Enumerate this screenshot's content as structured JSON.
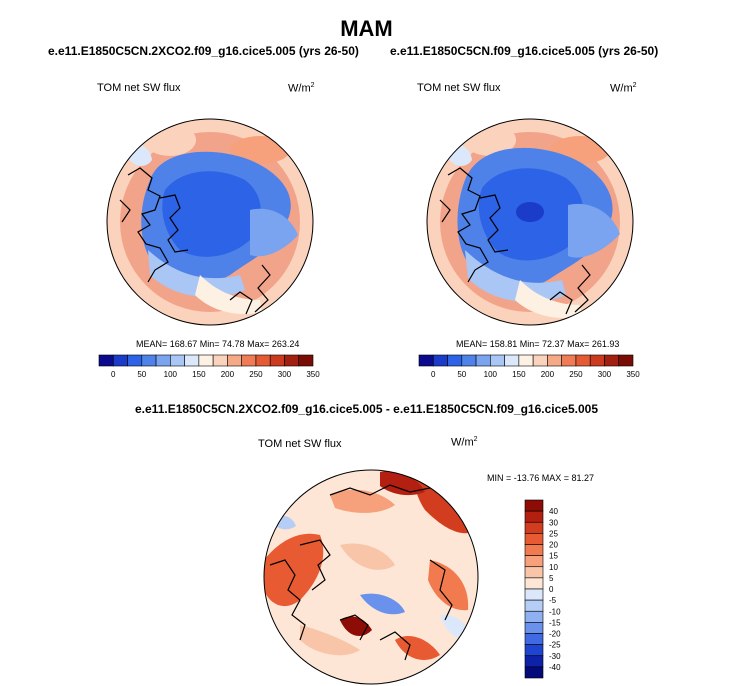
{
  "figure": {
    "season": "MAM",
    "colors": {
      "ocean_warm": "#f2a48a",
      "ice_blue": "#4f82e8",
      "coast": "#000000"
    }
  },
  "panels": [
    {
      "id": "panel-test",
      "title": "e.e11.E1850C5CN.2XCO2.f09_g16.cice5.005 (yrs 26-50)",
      "variable": "TOM net SW flux",
      "units_base": "W/m",
      "units_exp": "2",
      "stats_text": "MEAN= 168.67  Min=  74.78  Max= 263.24"
    },
    {
      "id": "panel-control",
      "title": "e.e11.E1850C5CN.f09_g16.cice5.005 (yrs 26-50)",
      "variable": "TOM net SW flux",
      "units_base": "W/m",
      "units_exp": "2",
      "stats_text": "MEAN= 158.81  Min=  72.37  Max= 261.93"
    }
  ],
  "diff_panel": {
    "title": "e.e11.E1850C5CN.2XCO2.f09_g16.cice5.005 - e.e11.E1850C5CN.f09_g16.cice5.005",
    "variable": "TOM net SW flux",
    "units_base": "W/m",
    "units_exp": "2",
    "stats_text": "MIN = -13.76 MAX =  81.27"
  },
  "chart_data": [
    {
      "type": "heatmap",
      "title": "e.e11.E1850C5CN.2XCO2.f09_g16.cice5.005 (yrs 26-50)",
      "projection": "north polar stereographic",
      "variable": "TOM net SW flux",
      "units": "W/m2",
      "mean": 168.67,
      "min": 74.78,
      "max": 263.24,
      "colorbar": {
        "orientation": "horizontal",
        "labels": [
          "0",
          "50",
          "100",
          "150",
          "200",
          "250",
          "300",
          "350"
        ],
        "colors": [
          "#0b0b8e",
          "#1a3cc8",
          "#2d63e6",
          "#4f82e8",
          "#7aa3f0",
          "#a9c6f5",
          "#dbe8fb",
          "#fdf1e4",
          "#fbd3bd",
          "#f5a986",
          "#ef7c57",
          "#e35a33",
          "#c93a1e",
          "#a12010",
          "#7a0c06"
        ]
      }
    },
    {
      "type": "heatmap",
      "title": "e.e11.E1850C5CN.f09_g16.cice5.005 (yrs 26-50)",
      "projection": "north polar stereographic",
      "variable": "TOM net SW flux",
      "units": "W/m2",
      "mean": 158.81,
      "min": 72.37,
      "max": 261.93,
      "colorbar": {
        "orientation": "horizontal",
        "labels": [
          "0",
          "50",
          "100",
          "150",
          "200",
          "250",
          "300",
          "350"
        ],
        "colors": [
          "#0b0b8e",
          "#1a3cc8",
          "#2d63e6",
          "#4f82e8",
          "#7aa3f0",
          "#a9c6f5",
          "#dbe8fb",
          "#fdf1e4",
          "#fbd3bd",
          "#f5a986",
          "#ef7c57",
          "#e35a33",
          "#c93a1e",
          "#a12010",
          "#7a0c06"
        ]
      }
    },
    {
      "type": "heatmap",
      "title": "e.e11.E1850C5CN.2XCO2.f09_g16.cice5.005 - e.e11.E1850C5CN.f09_g16.cice5.005",
      "projection": "north polar stereographic",
      "variable": "TOM net SW flux",
      "units": "W/m2",
      "min": -13.76,
      "max": 81.27,
      "colorbar": {
        "orientation": "vertical",
        "labels": [
          "40",
          "30",
          "25",
          "20",
          "15",
          "10",
          "5",
          "0",
          "-5",
          "-10",
          "-15",
          "-20",
          "-25",
          "-30",
          "-40"
        ],
        "colors": [
          "#8e0c06",
          "#b31f10",
          "#d23d1f",
          "#e85a32",
          "#f27a4f",
          "#f6a07c",
          "#f9c5a9",
          "#fde6d6",
          "#dbe8fb",
          "#b6cef6",
          "#8fb0f1",
          "#6a91ec",
          "#3f6ae4",
          "#1f44d2",
          "#0d22a8",
          "#030a7a"
        ]
      }
    }
  ]
}
